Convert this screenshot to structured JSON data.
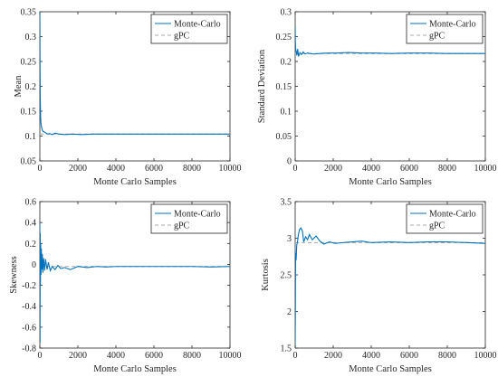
{
  "colors": {
    "monte_carlo": "#0072BD",
    "gpc": "#A8A8A8",
    "axis": "#262626",
    "background": "#ffffff"
  },
  "chart_data": [
    {
      "type": "line",
      "xlabel": "Monte Carlo Samples",
      "ylabel": "Mean",
      "xlim": [
        0,
        10000
      ],
      "ylim": [
        0.05,
        0.35
      ],
      "xticks": [
        0,
        2000,
        4000,
        6000,
        8000,
        10000
      ],
      "xtick_labels": [
        "0",
        "2000",
        "4000",
        "6000",
        "8000",
        "10000"
      ],
      "yticks": [
        0.05,
        0.1,
        0.15,
        0.2,
        0.25,
        0.3,
        0.35
      ],
      "ytick_labels": [
        "0.05",
        "0.1",
        "0.15",
        "0.2",
        "0.25",
        "0.3",
        "0.35"
      ],
      "legend": [
        "Monte-Carlo",
        "gPC"
      ],
      "legend_position": "top-right",
      "series": [
        {
          "name": "Monte-Carlo",
          "style": "solid",
          "x": [
            0,
            10,
            20,
            40,
            60,
            90,
            130,
            180,
            250,
            330,
            420,
            520,
            650,
            800,
            1000,
            1300,
            1700,
            2200,
            2800,
            3500,
            4200,
            5000,
            6000,
            7000,
            8000,
            9000,
            10000
          ],
          "y": [
            0.35,
            0.24,
            0.18,
            0.14,
            0.125,
            0.118,
            0.112,
            0.109,
            0.108,
            0.106,
            0.104,
            0.105,
            0.103,
            0.106,
            0.104,
            0.103,
            0.104,
            0.103,
            0.104,
            0.104,
            0.104,
            0.104,
            0.104,
            0.104,
            0.104,
            0.104,
            0.104
          ]
        },
        {
          "name": "gPC",
          "style": "dashed",
          "x": [
            0,
            10000
          ],
          "y": [
            0.104,
            0.104
          ]
        }
      ]
    },
    {
      "type": "line",
      "xlabel": "Monte Carlo Samples",
      "ylabel": "Standard Deviation",
      "xlim": [
        0,
        10000
      ],
      "ylim": [
        0,
        0.3
      ],
      "xticks": [
        0,
        2000,
        4000,
        6000,
        8000,
        10000
      ],
      "xtick_labels": [
        "0",
        "2000",
        "4000",
        "6000",
        "8000",
        "10000"
      ],
      "yticks": [
        0,
        0.05,
        0.1,
        0.15,
        0.2,
        0.25,
        0.3
      ],
      "ytick_labels": [
        "0",
        "0.05",
        "0.1",
        "0.15",
        "0.2",
        "0.25",
        "0.3"
      ],
      "legend": [
        "Monte-Carlo",
        "gPC"
      ],
      "legend_position": "top-right",
      "series": [
        {
          "name": "Monte-Carlo",
          "style": "solid",
          "x": [
            0,
            10,
            20,
            40,
            60,
            90,
            130,
            180,
            250,
            330,
            420,
            520,
            650,
            800,
            1000,
            1300,
            1700,
            2200,
            2800,
            3500,
            4200,
            5000,
            6000,
            7000,
            8000,
            9000,
            10000
          ],
          "y": [
            0.27,
            0.24,
            0.228,
            0.222,
            0.22,
            0.212,
            0.225,
            0.21,
            0.218,
            0.214,
            0.219,
            0.215,
            0.217,
            0.216,
            0.215,
            0.216,
            0.217,
            0.217,
            0.218,
            0.217,
            0.217,
            0.216,
            0.217,
            0.217,
            0.216,
            0.216,
            0.216
          ]
        },
        {
          "name": "gPC",
          "style": "dashed",
          "x": [
            0,
            10000
          ],
          "y": [
            0.216,
            0.216
          ]
        }
      ]
    },
    {
      "type": "line",
      "xlabel": "Monte Carlo Samples",
      "ylabel": "Skewness",
      "xlim": [
        0,
        10000
      ],
      "ylim": [
        -0.8,
        0.6
      ],
      "xticks": [
        0,
        2000,
        4000,
        6000,
        8000,
        10000
      ],
      "xtick_labels": [
        "0",
        "2000",
        "4000",
        "6000",
        "8000",
        "10000"
      ],
      "yticks": [
        -0.8,
        -0.6,
        -0.4,
        -0.2,
        0,
        0.2,
        0.4,
        0.6
      ],
      "ytick_labels": [
        "-0.8",
        "-0.6",
        "-0.4",
        "-0.2",
        "0",
        "0.2",
        "0.4",
        "0.6"
      ],
      "legend": [
        "Monte-Carlo",
        "gPC"
      ],
      "legend_position": "top-right",
      "series": [
        {
          "name": "Monte-Carlo",
          "style": "solid",
          "x": [
            0,
            10,
            20,
            30,
            45,
            60,
            80,
            100,
            130,
            160,
            200,
            250,
            300,
            380,
            450,
            550,
            650,
            800,
            950,
            1100,
            1300,
            1600,
            2000,
            2500,
            3000,
            3500,
            4000,
            5000,
            6000,
            7000,
            8000,
            9000,
            10000
          ],
          "y": [
            0.4,
            -0.75,
            0.3,
            -0.2,
            0.2,
            -0.1,
            0.15,
            -0.05,
            0.1,
            -0.08,
            0.06,
            -0.06,
            0.05,
            -0.05,
            0.02,
            -0.06,
            -0.02,
            -0.05,
            -0.01,
            -0.04,
            -0.03,
            -0.05,
            -0.02,
            -0.03,
            -0.02,
            -0.025,
            -0.02,
            -0.02,
            -0.02,
            -0.02,
            -0.02,
            -0.025,
            -0.02
          ]
        },
        {
          "name": "gPC",
          "style": "dashed",
          "x": [
            0,
            10000
          ],
          "y": [
            -0.02,
            -0.02
          ]
        }
      ]
    },
    {
      "type": "line",
      "xlabel": "Monte Carlo Samples",
      "ylabel": "Kurtosis",
      "xlim": [
        0,
        10000
      ],
      "ylim": [
        1.5,
        3.5
      ],
      "xticks": [
        0,
        2000,
        4000,
        6000,
        8000,
        10000
      ],
      "xtick_labels": [
        "0",
        "2000",
        "4000",
        "6000",
        "8000",
        "10000"
      ],
      "yticks": [
        1.5,
        2,
        2.5,
        3,
        3.5
      ],
      "ytick_labels": [
        "1.5",
        "2",
        "2.5",
        "3",
        "3.5"
      ],
      "legend": [
        "Monte-Carlo",
        "gPC"
      ],
      "legend_position": "top-right",
      "series": [
        {
          "name": "Monte-Carlo",
          "style": "solid",
          "x": [
            0,
            10,
            20,
            30,
            50,
            80,
            120,
            170,
            230,
            300,
            380,
            450,
            550,
            650,
            750,
            900,
            1100,
            1300,
            1500,
            1800,
            2100,
            2500,
            3000,
            3500,
            4000,
            5000,
            6000,
            7000,
            8000,
            9000,
            10000
          ],
          "y": [
            1.55,
            2.0,
            2.65,
            2.8,
            2.7,
            2.9,
            2.95,
            3.05,
            3.12,
            3.14,
            3.1,
            2.95,
            3.02,
            2.98,
            3.05,
            2.98,
            3.03,
            2.96,
            2.92,
            2.95,
            2.93,
            2.94,
            2.95,
            2.96,
            2.94,
            2.95,
            2.94,
            2.95,
            2.95,
            2.94,
            2.93
          ]
        },
        {
          "name": "gPC",
          "style": "dashed",
          "x": [
            0,
            10000
          ],
          "y": [
            2.94,
            2.94
          ]
        }
      ]
    }
  ]
}
